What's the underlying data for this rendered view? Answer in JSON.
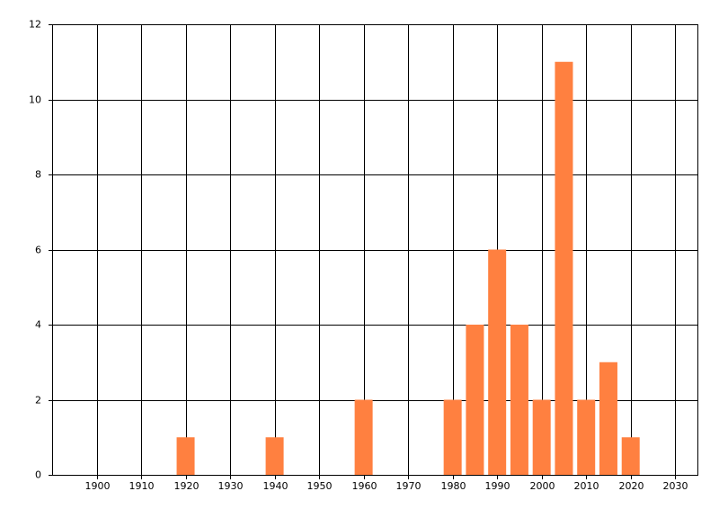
{
  "chart_data": {
    "type": "bar",
    "x": [
      1920,
      1940,
      1960,
      1980,
      1985,
      1990,
      1995,
      2000,
      2005,
      2010,
      2015,
      2020
    ],
    "values": [
      1,
      1,
      2,
      2,
      4,
      6,
      4,
      2,
      11,
      2,
      3,
      1
    ],
    "color": "#ff8040",
    "xlim": [
      1890,
      2035
    ],
    "xticks": [
      1900,
      1910,
      1920,
      1930,
      1940,
      1950,
      1960,
      1970,
      1980,
      1990,
      2000,
      2010,
      2020,
      2030
    ],
    "ylim": [
      0,
      12
    ],
    "yticks": [
      0,
      2,
      4,
      6,
      8,
      10,
      12
    ],
    "grid": true
  }
}
